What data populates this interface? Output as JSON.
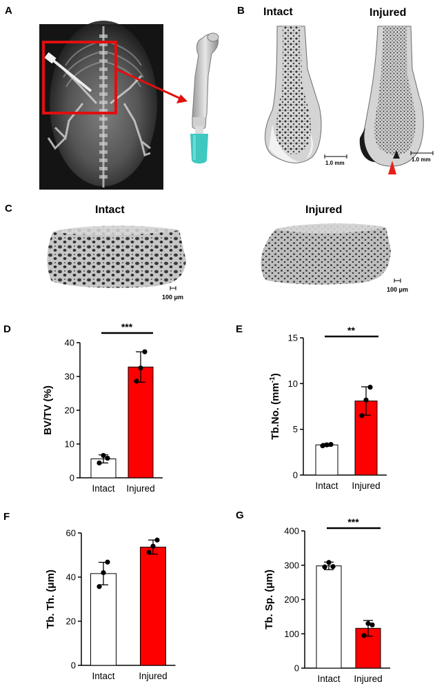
{
  "panels": {
    "A": {
      "letter": "A"
    },
    "B": {
      "letter": "B",
      "label_left": "Intact",
      "label_right": "Injured",
      "scale_left": "1.0 mm",
      "scale_right": "1.0 mm"
    },
    "C": {
      "letter": "C",
      "label_left": "Intact",
      "label_right": "Injured",
      "scale_left": "100 μm",
      "scale_right": "100 μm"
    }
  },
  "colors": {
    "injured": "#ff0000",
    "intact": "#ffffff",
    "arrow": "#e8201a",
    "needle_tip": "#3fc8c0"
  },
  "chart_data": [
    {
      "id": "D",
      "type": "bar",
      "letter": "D",
      "ylabel": "BV/TV (%)",
      "categories": [
        "Intact",
        "Injured"
      ],
      "values": [
        5.6,
        32.8
      ],
      "errors": [
        1.2,
        4.5
      ],
      "points": [
        [
          4.4,
          6.6,
          5.8
        ],
        [
          28.6,
          32.5,
          37.3
        ]
      ],
      "ylim": [
        0,
        40
      ],
      "yticks": [
        0,
        10,
        20,
        30,
        40
      ],
      "ytick_labels": [
        "0",
        "10",
        "20",
        "30",
        "40"
      ],
      "significance": "***"
    },
    {
      "id": "E",
      "type": "bar",
      "letter": "E",
      "ylabel_main": "Tb.No. (mm",
      "ylabel_sup": "-1",
      "ylabel_end": ")",
      "categories": [
        "Intact",
        "Injured"
      ],
      "values": [
        3.3,
        8.1
      ],
      "errors": [
        0.15,
        1.55
      ],
      "points": [
        [
          3.2,
          3.3,
          3.35
        ],
        [
          6.5,
          8.2,
          9.6
        ]
      ],
      "ylim": [
        0,
        15
      ],
      "yticks": [
        0,
        5,
        10,
        15
      ],
      "ytick_labels": [
        "0",
        "5",
        "10",
        "15"
      ],
      "significance": "**"
    },
    {
      "id": "F",
      "type": "bar",
      "letter": "F",
      "ylabel": "Tb. Th. (μm)",
      "categories": [
        "Intact",
        "Injured"
      ],
      "values": [
        41.6,
        53.6
      ],
      "errors": [
        5.1,
        3.2
      ],
      "points": [
        [
          35.7,
          42.0,
          46.8
        ],
        [
          51.2,
          54.0,
          56.8
        ]
      ],
      "ylim": [
        0,
        60
      ],
      "yticks": [
        0,
        20,
        40,
        60
      ],
      "ytick_labels": [
        "0",
        "20",
        "40",
        "60"
      ],
      "significance": ""
    },
    {
      "id": "G",
      "type": "bar",
      "letter": "G",
      "ylabel": "Tb. Sp. (μm)",
      "categories": [
        "Intact",
        "Injured"
      ],
      "values": [
        298,
        116
      ],
      "errors": [
        11,
        23
      ],
      "points": [
        [
          295,
          308,
          296
        ],
        [
          95,
          130,
          126
        ]
      ],
      "ylim": [
        0,
        400
      ],
      "yticks": [
        0,
        100,
        200,
        300,
        400
      ],
      "ytick_labels": [
        "0",
        "100",
        "200",
        "300",
        "400"
      ],
      "significance": "***"
    }
  ]
}
